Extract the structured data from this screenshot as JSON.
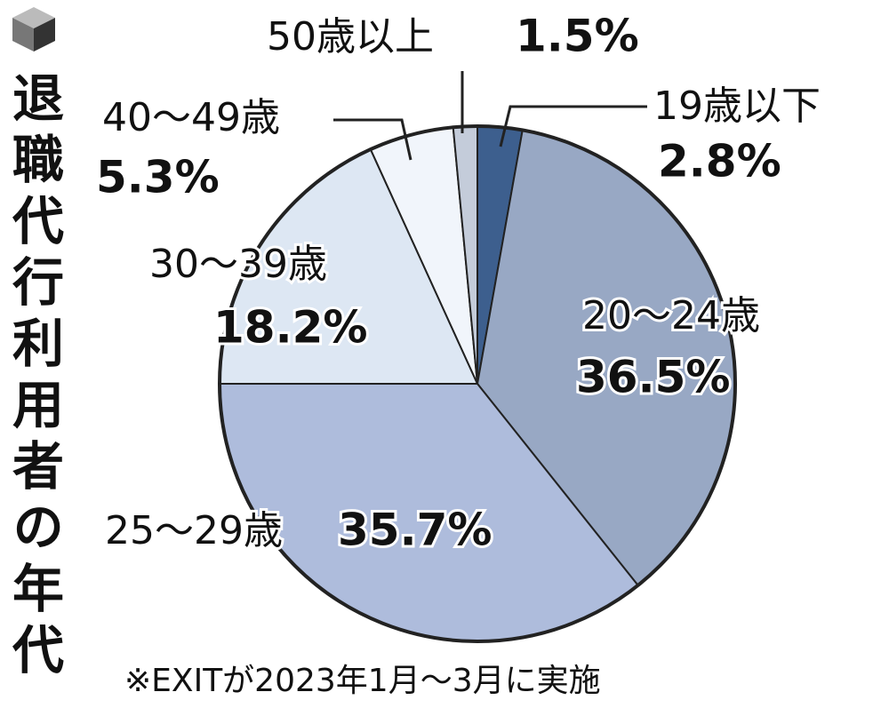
{
  "chart_data": {
    "type": "pie",
    "title": "退職代行利用者の年代",
    "note": "※EXITが2023年1月～3月に実施",
    "categories": [
      "19歳以下",
      "20～24歳",
      "25～29歳",
      "30～39歳",
      "40～49歳",
      "50歳以上"
    ],
    "values": [
      2.8,
      36.5,
      35.7,
      18.2,
      5.3,
      1.5
    ],
    "value_labels": [
      "2.8%",
      "36.5%",
      "35.7%",
      "18.2%",
      "5.3%",
      "1.5%"
    ],
    "colors": [
      "#3d5f8e",
      "#98a8c4",
      "#aebcdc",
      "#dde7f3",
      "#f1f5fb",
      "#c4ccda"
    ]
  }
}
